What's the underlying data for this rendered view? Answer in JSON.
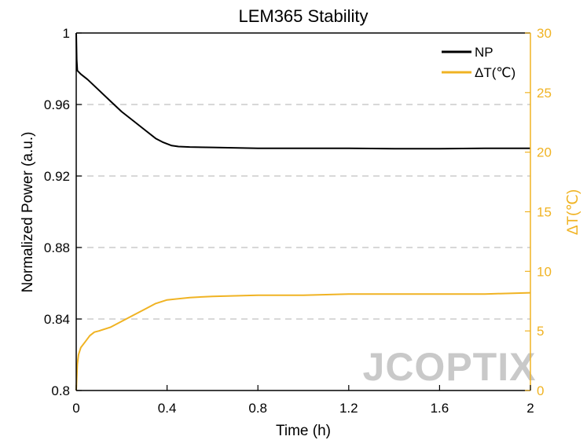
{
  "chart_data": {
    "type": "line",
    "title": "LEM365 Stability",
    "xlabel": "Time (h)",
    "ylabel": "Normalized Power (a.u.)",
    "y2label": "ΔT(℃)",
    "xlim": [
      0,
      2
    ],
    "ylim": [
      0.8,
      1.0
    ],
    "y2lim": [
      0,
      30
    ],
    "x_ticks": [
      0,
      0.4,
      0.8,
      1.2,
      1.6,
      2
    ],
    "x_tick_labels": [
      "0",
      "0.4",
      "0.8",
      "1.2",
      "1.6",
      "2"
    ],
    "y_ticks": [
      0.8,
      0.84,
      0.88,
      0.92,
      0.96,
      1.0
    ],
    "y_tick_labels": [
      "0.8",
      "0.84",
      "0.88",
      "0.92",
      "0.96",
      "1"
    ],
    "y2_ticks": [
      0,
      5,
      10,
      15,
      20,
      25,
      30
    ],
    "y2_tick_labels": [
      "0",
      "5",
      "10",
      "15",
      "20",
      "25",
      "30"
    ],
    "grid": "horizontal-dashed",
    "legend_position": "top-right",
    "colors": {
      "np": "#000000",
      "dt": "#f0b323",
      "grid": "#cccccc",
      "watermark": "#c9c9c9"
    },
    "series": [
      {
        "name": "NP",
        "axis": "left",
        "x": [
          0,
          0.002,
          0.005,
          0.02,
          0.05,
          0.1,
          0.15,
          0.2,
          0.25,
          0.3,
          0.35,
          0.38,
          0.4,
          0.42,
          0.45,
          0.5,
          0.6,
          0.8,
          1.0,
          1.2,
          1.4,
          1.6,
          1.8,
          2.0
        ],
        "y": [
          1.0,
          0.985,
          0.979,
          0.977,
          0.974,
          0.968,
          0.962,
          0.956,
          0.951,
          0.946,
          0.941,
          0.939,
          0.938,
          0.937,
          0.9365,
          0.9362,
          0.936,
          0.9355,
          0.9355,
          0.9355,
          0.9353,
          0.9353,
          0.9355,
          0.9355
        ]
      },
      {
        "name": "ΔT(℃)",
        "axis": "right",
        "x": [
          0,
          0.005,
          0.01,
          0.02,
          0.04,
          0.06,
          0.08,
          0.1,
          0.15,
          0.2,
          0.25,
          0.3,
          0.35,
          0.4,
          0.5,
          0.6,
          0.8,
          1.0,
          1.2,
          1.4,
          1.6,
          1.8,
          2.0
        ],
        "y": [
          0,
          2.2,
          3.0,
          3.6,
          4.1,
          4.6,
          4.9,
          5.0,
          5.3,
          5.8,
          6.3,
          6.8,
          7.3,
          7.6,
          7.8,
          7.9,
          8.0,
          8.0,
          8.1,
          8.1,
          8.1,
          8.1,
          8.2
        ]
      }
    ],
    "watermark": "JCOPTIX"
  }
}
